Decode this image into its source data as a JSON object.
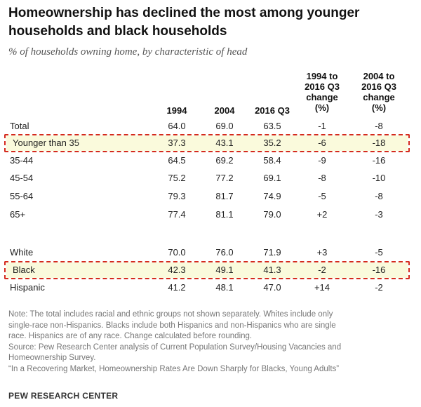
{
  "title_line1": "Homeownership  has declined the most among younger",
  "title_line2": "households and black households",
  "subtitle": "% of households owning home, by characteristic of head",
  "chart_data": {
    "type": "table",
    "columns": [
      "1994",
      "2004",
      "2016 Q3"
    ],
    "change_columns": [
      [
        "1994 to",
        "2016 Q3",
        "change",
        "(%)"
      ],
      [
        "2004 to",
        "2016 Q3",
        "change",
        "(%)"
      ]
    ],
    "rows": [
      {
        "label": "Total",
        "values": [
          "64.0",
          "69.0",
          "63.5",
          "-1",
          "-8"
        ],
        "highlight": false
      },
      {
        "label": "Younger than 35",
        "values": [
          "37.3",
          "43.1",
          "35.2",
          "-6",
          "-18"
        ],
        "highlight": true
      },
      {
        "label": "35-44",
        "values": [
          "64.5",
          "69.2",
          "58.4",
          "-9",
          "-16"
        ],
        "highlight": false
      },
      {
        "label": "45-54",
        "values": [
          "75.2",
          "77.2",
          "69.1",
          "-8",
          "-10"
        ],
        "highlight": false
      },
      {
        "label": "55-64",
        "values": [
          "79.3",
          "81.7",
          "74.9",
          "-5",
          "-8"
        ],
        "highlight": false
      },
      {
        "label": "65+",
        "values": [
          "77.4",
          "81.1",
          "79.0",
          "+2",
          "-3"
        ],
        "highlight": false
      },
      {
        "label": "White",
        "values": [
          "70.0",
          "76.0",
          "71.9",
          "+3",
          "-5"
        ],
        "highlight": false
      },
      {
        "label": "Black",
        "values": [
          "42.3",
          "49.1",
          "41.3",
          "-2",
          "-16"
        ],
        "highlight": true
      },
      {
        "label": "Hispanic",
        "values": [
          "41.2",
          "48.1",
          "47.0",
          "+14",
          "-2"
        ],
        "highlight": false
      }
    ],
    "highlight_color": "#d42a1e"
  },
  "notes": [
    "Note: The total includes racial and ethnic groups not shown separately. Whites include only",
    "single-race non-Hispanics. Blacks include both Hispanics and non-Hispanics who are single",
    "race. Hispanics are of any race. Change calculated before rounding.",
    "Source: Pew Research Center analysis of Current Population Survey/Housing Vacancies and",
    "Homeownership Survey.",
    "“In a Recovering Market, Homeownership Rates Are Down Sharply for Blacks, Young Adults”"
  ],
  "source_label": "PEW RESEARCH CENTER"
}
